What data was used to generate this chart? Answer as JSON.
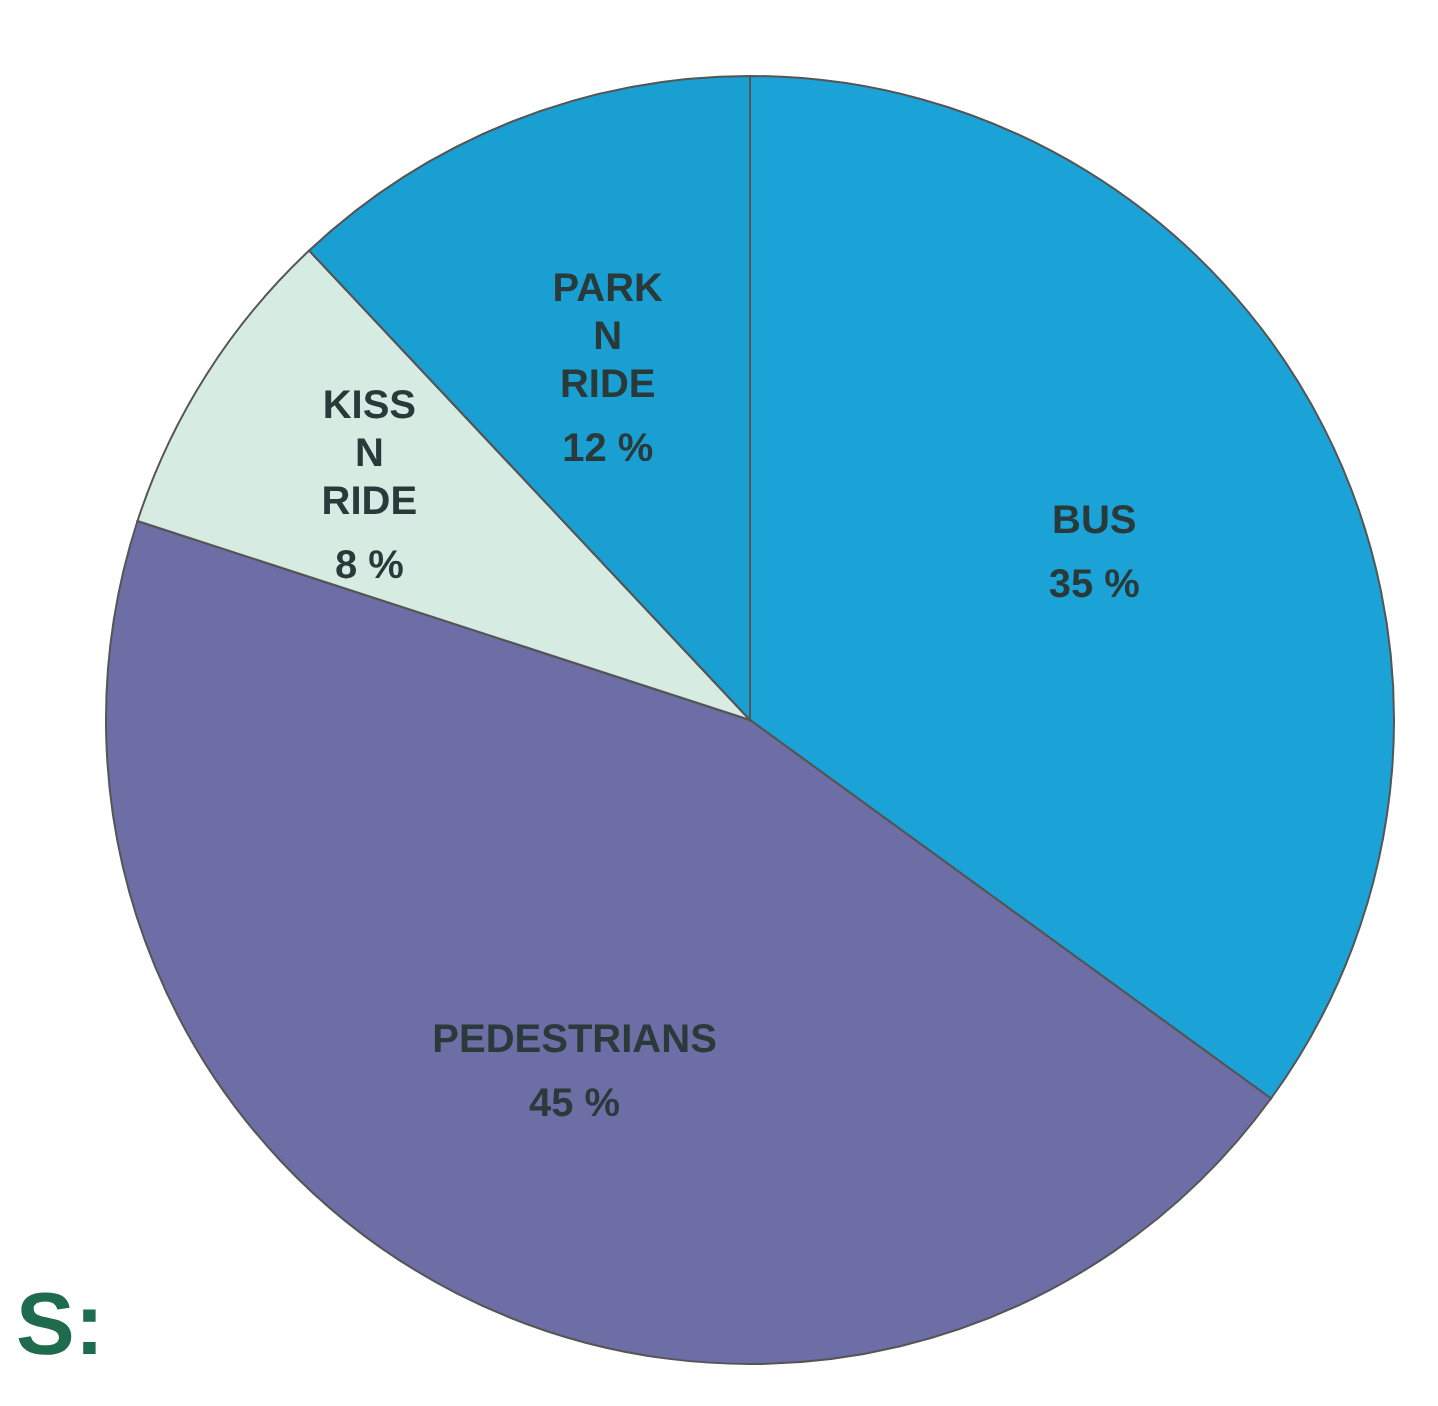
{
  "chart_data": {
    "type": "pie",
    "categories": [
      "BUS",
      "PEDESTRIANS",
      "KISS N RIDE",
      "PARK N RIDE"
    ],
    "values": [
      35,
      45,
      8,
      12
    ],
    "value_labels": [
      "35 %",
      "45 %",
      "8 %",
      "12 %"
    ],
    "colors": [
      "#1ba3d8",
      "#6e6ea6",
      "#d6ebe2",
      "#1a9fd3"
    ],
    "annotations": [
      "S:"
    ]
  }
}
